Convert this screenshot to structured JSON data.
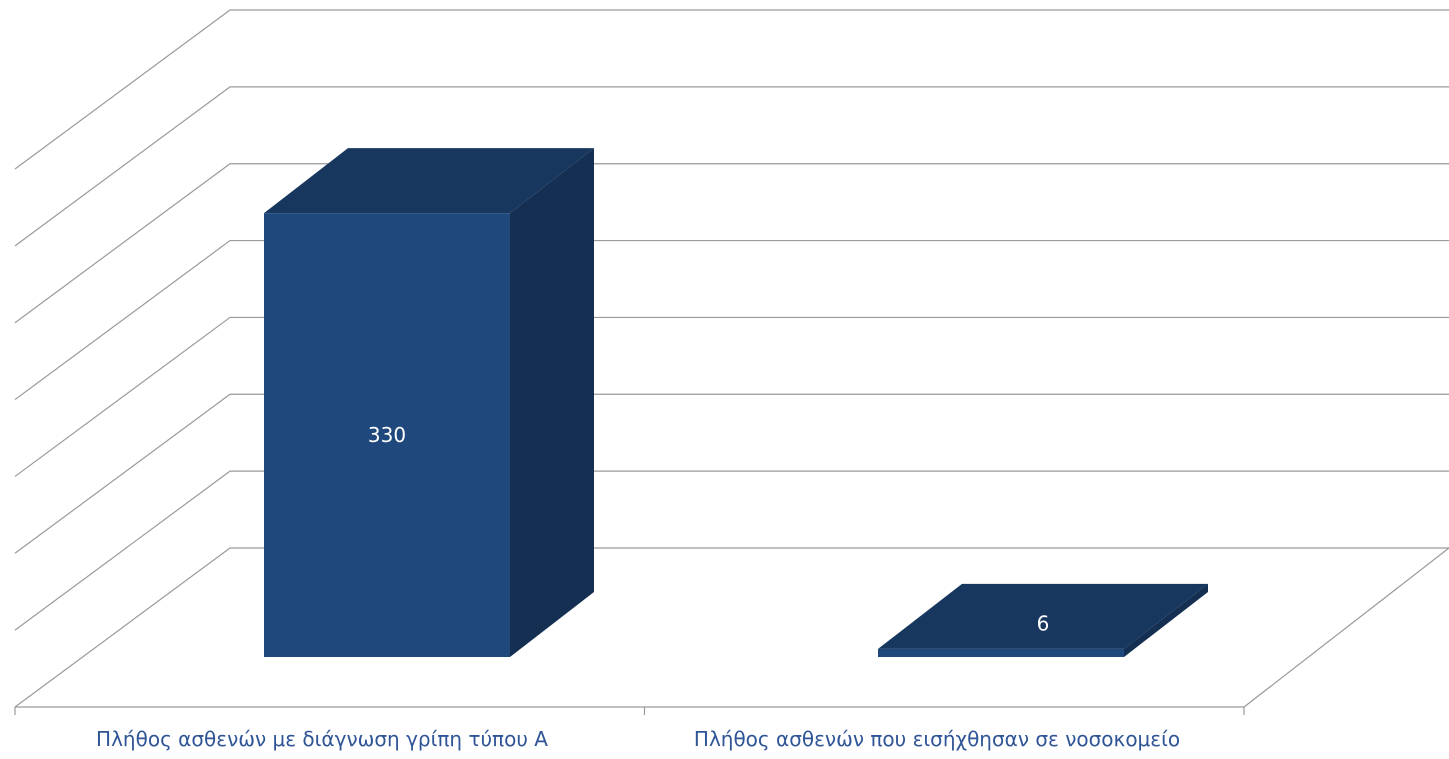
{
  "chart_data": {
    "type": "bar",
    "title": "",
    "xlabel": "",
    "ylabel": "",
    "categories": [
      "Πλήθος ασθενών με διάγνωση γρίπη τύπου Α",
      "Πλήθος ασθενών που εισήχθησαν σε νοσοκομείο"
    ],
    "values": [
      330,
      6
    ],
    "data_labels": [
      "330",
      "6"
    ],
    "ylim": [
      0,
      400
    ],
    "grid": true,
    "legend": "none",
    "three_d": true,
    "colors": {
      "front": "#1f497d",
      "top": "#17375e",
      "side": "#142f52",
      "data_label": "#ffffff",
      "category_label": "#2f5597",
      "grid": "#9a9a9a"
    }
  }
}
